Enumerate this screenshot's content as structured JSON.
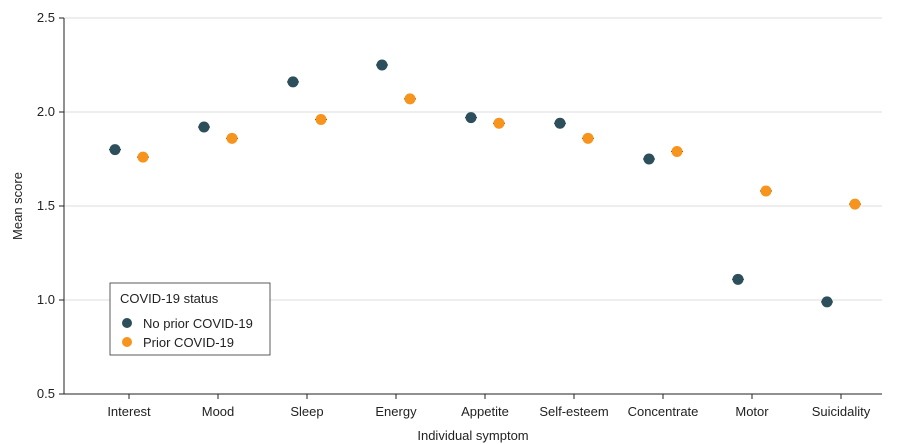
{
  "chart_data": {
    "type": "scatter",
    "xlabel": "Individual symptom",
    "ylabel": "Mean score",
    "ylim": [
      0.5,
      2.5
    ],
    "yticks": [
      "0.5",
      "1.0",
      "1.5",
      "2.0",
      "2.5"
    ],
    "categories": [
      "Interest",
      "Mood",
      "Sleep",
      "Energy",
      "Appetite",
      "Self-esteem",
      "Concentrate",
      "Motor",
      "Suicidality"
    ],
    "grid": true,
    "legend": {
      "title": "COVID-19 status",
      "placement": "bottom-left"
    },
    "series": [
      {
        "name": "No prior COVID-19",
        "color": "#2d4f5c",
        "values": [
          1.8,
          1.92,
          2.16,
          2.25,
          1.97,
          1.94,
          1.75,
          1.11,
          0.99
        ]
      },
      {
        "name": "Prior COVID-19",
        "color": "#f7941d",
        "values": [
          1.76,
          1.86,
          1.96,
          2.07,
          1.94,
          1.86,
          1.79,
          1.58,
          1.51
        ]
      }
    ]
  }
}
